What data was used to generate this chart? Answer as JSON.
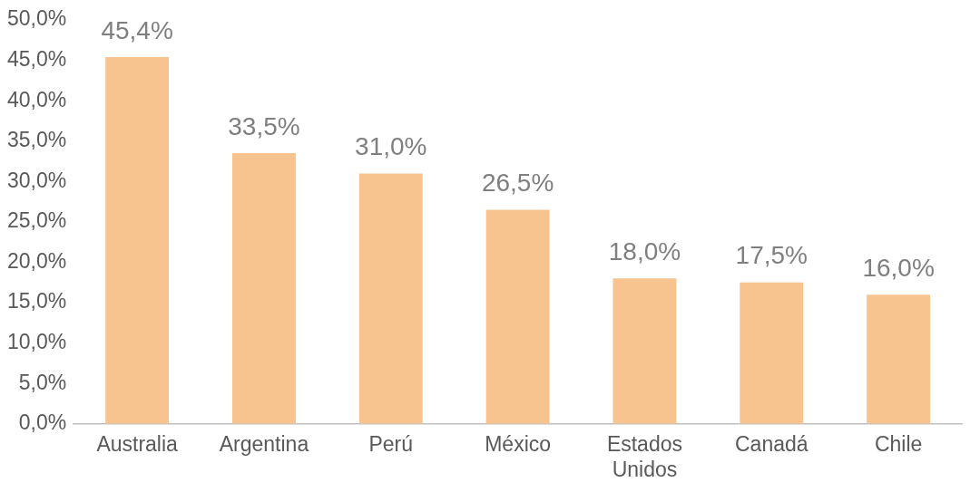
{
  "chart_data": {
    "type": "bar",
    "categories": [
      "Australia",
      "Argentina",
      "Perú",
      "México",
      "Estados Unidos",
      "Canadá",
      "Chile"
    ],
    "values": [
      45.4,
      33.5,
      31.0,
      26.5,
      18.0,
      17.5,
      16.0
    ],
    "value_labels": [
      "45,4%",
      "33,5%",
      "31,0%",
      "26,5%",
      "18,0%",
      "17,5%",
      "16,0%"
    ],
    "color": "#f7c490",
    "ylim": [
      0,
      50
    ],
    "yticks": [
      {
        "value": 0,
        "label": "0,0%"
      },
      {
        "value": 5,
        "label": "5,0%"
      },
      {
        "value": 10,
        "label": "10,0%"
      },
      {
        "value": 15,
        "label": "15,0%"
      },
      {
        "value": 20,
        "label": "20,0%"
      },
      {
        "value": 25,
        "label": "25,0%"
      },
      {
        "value": 30,
        "label": "30,0%"
      },
      {
        "value": 35,
        "label": "35,0%"
      },
      {
        "value": 40,
        "label": "40,0%"
      },
      {
        "value": 45,
        "label": "45,0%"
      },
      {
        "value": 50,
        "label": "50,0%"
      }
    ],
    "grid": false,
    "legend": false
  }
}
